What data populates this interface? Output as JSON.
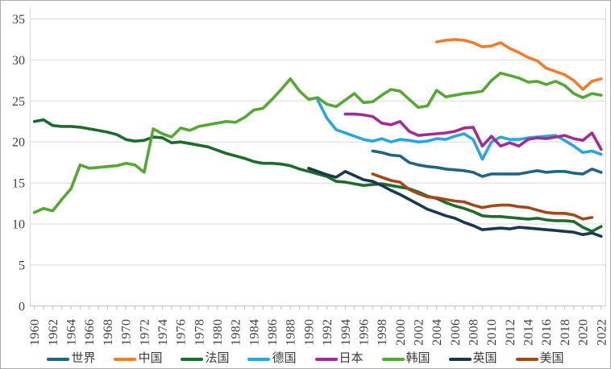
{
  "chart_data": {
    "type": "line",
    "title": "",
    "xlabel": "",
    "ylabel": "",
    "ylim": [
      0,
      35
    ],
    "x_start": 1960,
    "x_end": 2022,
    "x_label_step": 2,
    "grid": "horizontal",
    "legend_position": "bottom",
    "axis": {
      "y_ticks": [
        0,
        5,
        10,
        15,
        20,
        25,
        30,
        35
      ],
      "x_tick_labels": [
        "1960",
        "1962",
        "1964",
        "1966",
        "1968",
        "1970",
        "1972",
        "1974",
        "1976",
        "1978",
        "1980",
        "1982",
        "1984",
        "1986",
        "1988",
        "1990",
        "1992",
        "1994",
        "1996",
        "1998",
        "2000",
        "2002",
        "2004",
        "2006",
        "2008",
        "2010",
        "2012",
        "2014",
        "2016",
        "2018",
        "2020",
        "2022"
      ]
    },
    "series": [
      {
        "name": "世界",
        "name_en": "world",
        "color": "#236483",
        "start_year": 1997,
        "values": [
          18.9,
          18.7,
          18.4,
          18.3,
          17.5,
          17.2,
          17.0,
          16.9,
          16.7,
          16.6,
          16.5,
          16.3,
          15.8,
          16.1,
          16.1,
          16.1,
          16.1,
          16.3,
          16.5,
          16.3,
          16.4,
          16.4,
          16.2,
          16.1,
          16.7,
          16.3
        ]
      },
      {
        "name": "中国",
        "name_en": "china",
        "color": "#ED7D31",
        "start_year": 2004,
        "values": [
          32.2,
          32.4,
          32.5,
          32.4,
          32.1,
          31.6,
          31.7,
          32.1,
          31.4,
          30.9,
          30.3,
          29.9,
          29.0,
          28.6,
          28.2,
          27.5,
          26.4,
          27.4,
          27.7
        ]
      },
      {
        "name": "法国",
        "name_en": "france",
        "color": "#1F6B2E",
        "start_year": 1960,
        "values": [
          22.5,
          22.7,
          22.0,
          21.9,
          21.9,
          21.8,
          21.6,
          21.4,
          21.2,
          20.9,
          20.3,
          20.1,
          20.2,
          20.6,
          20.5,
          19.9,
          20.0,
          19.8,
          19.6,
          19.4,
          19.0,
          18.6,
          18.3,
          18.0,
          17.6,
          17.4,
          17.4,
          17.3,
          17.1,
          16.7,
          16.4,
          16.1,
          15.8,
          15.2,
          15.1,
          14.9,
          14.7,
          14.8,
          14.9,
          14.7,
          14.5,
          14.3,
          13.9,
          13.4,
          13.1,
          12.6,
          12.2,
          11.9,
          11.5,
          11.0,
          10.9,
          10.9,
          10.8,
          10.7,
          10.6,
          10.7,
          10.5,
          10.4,
          10.4,
          10.3,
          9.6,
          9.1,
          9.7
        ]
      },
      {
        "name": "德国",
        "name_en": "germany",
        "color": "#2BA5DE",
        "start_year": 1991,
        "values": [
          25.1,
          22.9,
          21.5,
          21.1,
          20.7,
          20.3,
          20.1,
          20.4,
          20.0,
          20.3,
          20.2,
          20.0,
          20.1,
          20.4,
          20.3,
          20.7,
          21.0,
          20.3,
          17.9,
          20.0,
          20.6,
          20.3,
          20.3,
          20.5,
          20.6,
          20.7,
          20.8,
          20.2,
          19.5,
          18.7,
          18.9,
          18.5
        ]
      },
      {
        "name": "日本",
        "name_en": "japan",
        "color": "#A32C93",
        "start_year": 1994,
        "values": [
          23.4,
          23.4,
          23.3,
          23.1,
          22.3,
          22.1,
          22.5,
          21.3,
          20.8,
          20.9,
          21.0,
          21.1,
          21.3,
          21.7,
          21.8,
          19.5,
          20.7,
          19.5,
          19.9,
          19.5,
          20.3,
          20.5,
          20.4,
          20.6,
          20.8,
          20.4,
          20.2,
          21.1,
          19.1
        ]
      },
      {
        "name": "韩国",
        "name_en": "korea",
        "color": "#56A836",
        "start_year": 1960,
        "values": [
          11.4,
          11.9,
          11.6,
          13.0,
          14.3,
          17.2,
          16.8,
          16.9,
          17.0,
          17.1,
          17.4,
          17.2,
          16.3,
          21.6,
          21.0,
          20.6,
          21.7,
          21.4,
          21.9,
          22.1,
          22.3,
          22.5,
          22.4,
          23.0,
          23.9,
          24.1,
          25.2,
          26.4,
          27.7,
          26.2,
          25.2,
          25.4,
          24.6,
          24.3,
          25.1,
          25.9,
          24.8,
          24.9,
          25.7,
          26.4,
          26.2,
          25.2,
          24.2,
          24.4,
          26.3,
          25.5,
          25.7,
          25.9,
          26.0,
          26.2,
          27.5,
          28.4,
          28.1,
          27.8,
          27.3,
          27.4,
          27.0,
          27.4,
          26.9,
          25.9,
          25.4,
          25.9,
          25.7
        ]
      },
      {
        "name": "英国",
        "name_en": "uk",
        "color": "#1B394E",
        "start_year": 1990,
        "values": [
          16.8,
          16.4,
          16.0,
          15.7,
          16.4,
          15.9,
          15.4,
          15.2,
          14.7,
          14.1,
          13.6,
          13.0,
          12.4,
          11.8,
          11.4,
          11.0,
          10.7,
          10.2,
          9.8,
          9.3,
          9.4,
          9.5,
          9.4,
          9.6,
          9.5,
          9.4,
          9.3,
          9.2,
          9.1,
          9.0,
          8.7,
          8.9,
          8.5
        ]
      },
      {
        "name": "美国",
        "name_en": "usa",
        "color": "#9E4A1E",
        "start_year": 1997,
        "values": [
          16.1,
          15.7,
          15.3,
          15.1,
          14.2,
          13.7,
          13.3,
          13.2,
          13.0,
          12.8,
          12.7,
          12.3,
          12.0,
          12.2,
          12.3,
          12.3,
          12.1,
          12.0,
          11.7,
          11.4,
          11.3,
          11.3,
          11.1,
          10.6,
          10.8
        ]
      }
    ]
  },
  "colors": {
    "grid": "#D9D9D9",
    "axis": "#BFBFBF",
    "plot_border": "#D9D9D9",
    "text": "#3F3F3F",
    "background": "#FFFFFF",
    "frame_border": "#ABABAB"
  }
}
